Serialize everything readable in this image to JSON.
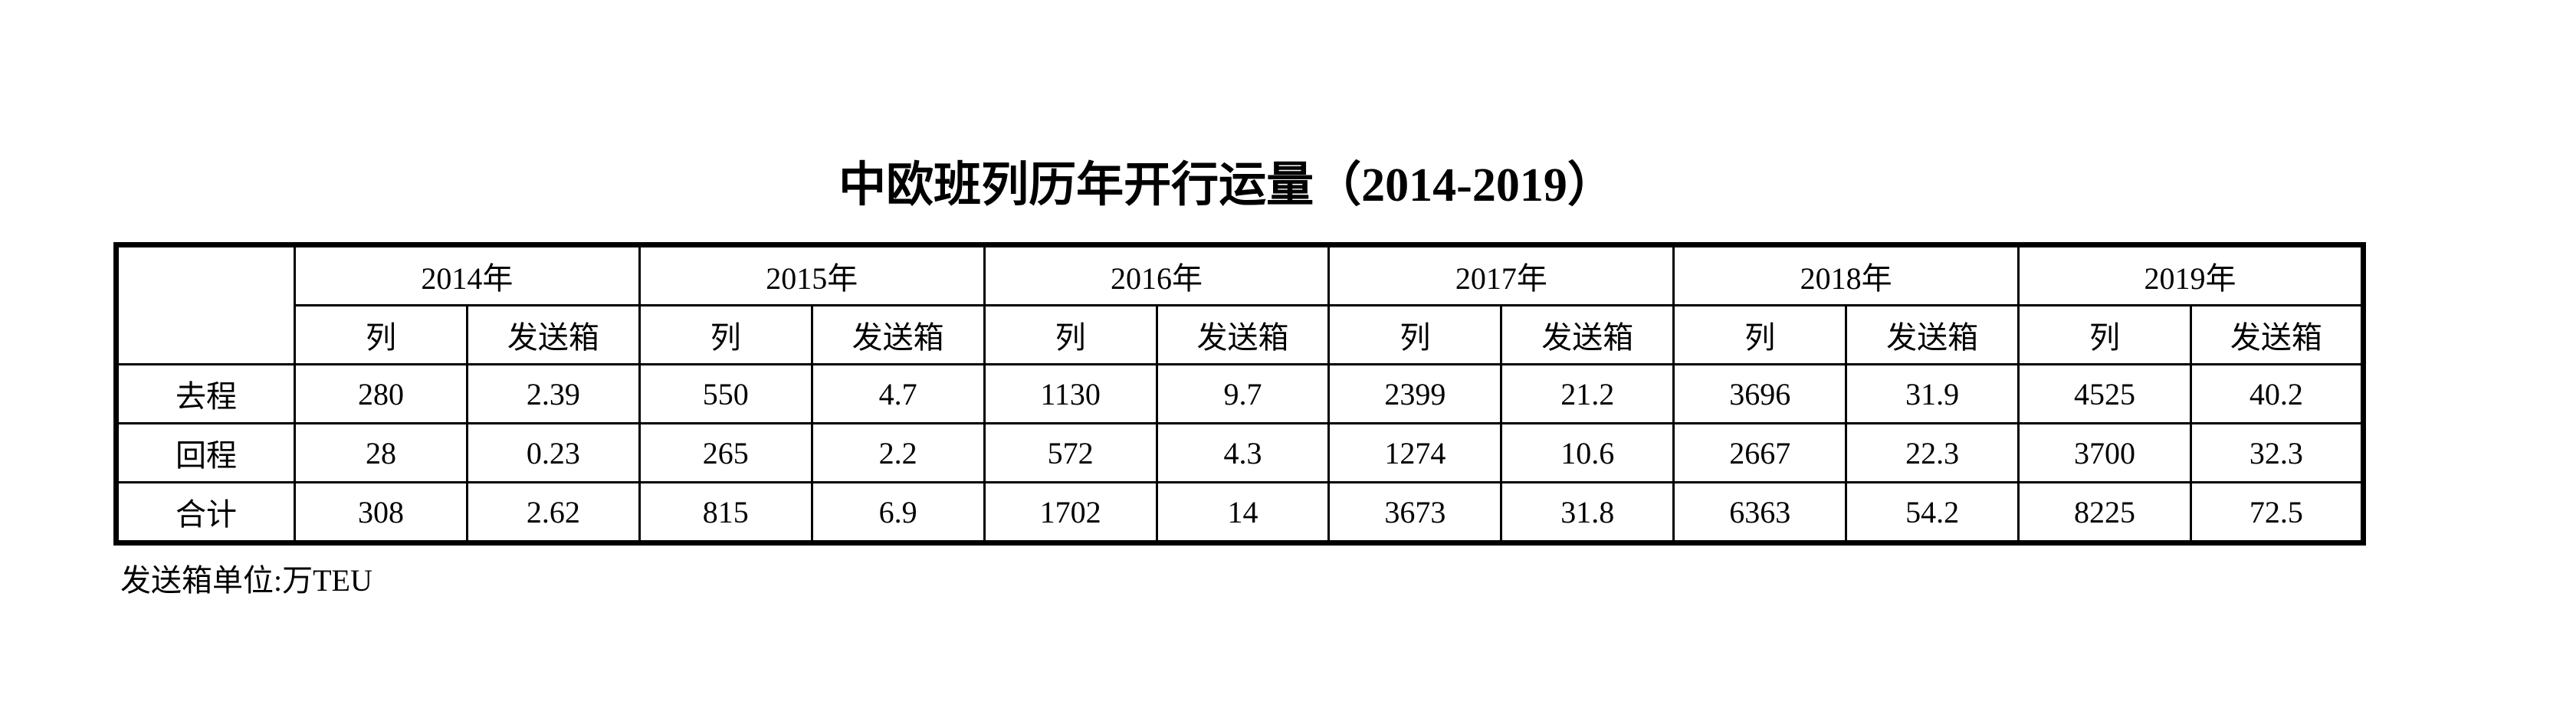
{
  "title": "中欧班列历年开行运量（2014-2019）",
  "table": {
    "years": [
      {
        "year": "2014年",
        "columns": [
          "列",
          "发送箱"
        ]
      },
      {
        "year": "2015年",
        "columns": [
          "列",
          "发送箱"
        ]
      },
      {
        "year": "2016年",
        "columns": [
          "列",
          "发送箱"
        ]
      },
      {
        "year": "2017年",
        "columns": [
          "列",
          "发送箱"
        ]
      },
      {
        "year": "2018年",
        "columns": [
          "列",
          "发送箱"
        ]
      },
      {
        "year": "2019年",
        "columns": [
          "列",
          "发送箱"
        ]
      }
    ],
    "rows": [
      {
        "label": "去程",
        "values": [
          280,
          2.39,
          550,
          4.7,
          1130,
          9.7,
          2399,
          21.2,
          3696,
          31.9,
          4525,
          40.2
        ]
      },
      {
        "label": "回程",
        "values": [
          28,
          0.23,
          265,
          2.2,
          572,
          4.3,
          1274,
          10.6,
          2667,
          22.3,
          3700,
          32.3
        ]
      },
      {
        "label": "合计",
        "values": [
          308,
          2.62,
          815,
          6.9,
          1702,
          14,
          3673,
          31.8,
          6363,
          54.2,
          8225,
          72.5
        ]
      }
    ]
  },
  "note": "发送箱单位:万TEU"
}
